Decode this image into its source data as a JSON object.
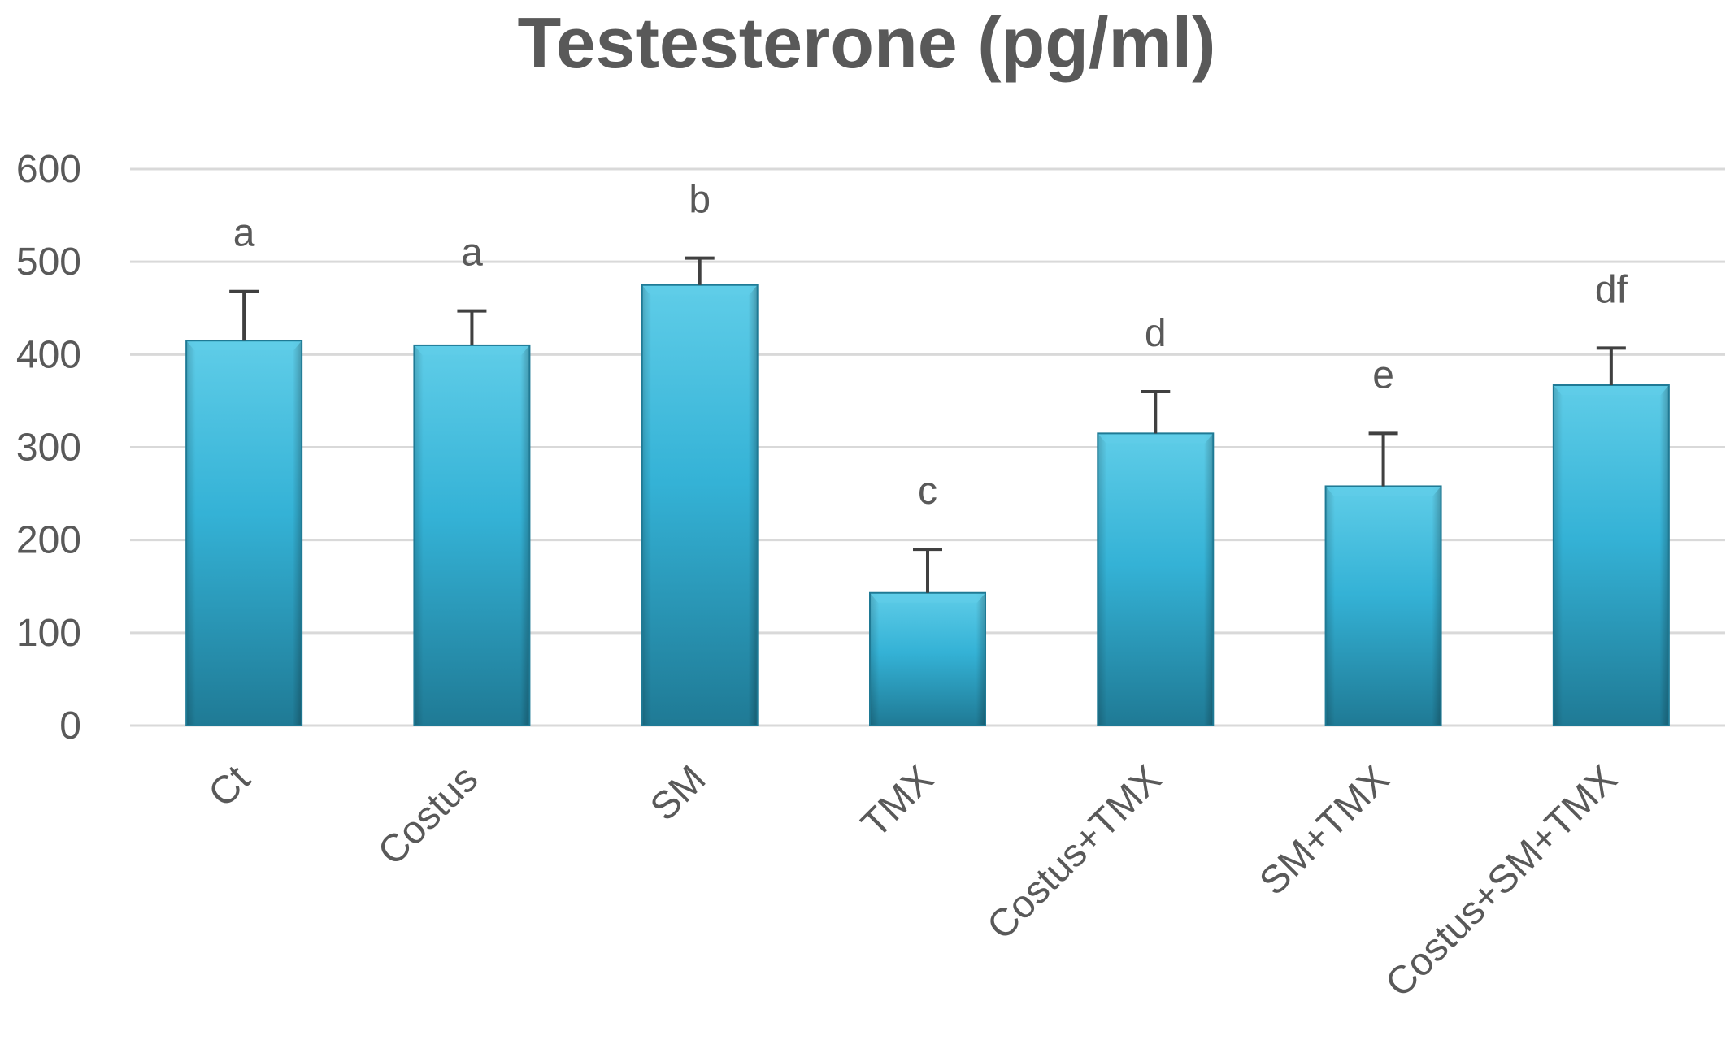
{
  "chart_data": {
    "type": "bar",
    "title": "Testesterone (pg/ml)",
    "xlabel": "",
    "ylabel": "",
    "ylim": [
      0,
      600
    ],
    "yticks": [
      0,
      100,
      200,
      300,
      400,
      500,
      600
    ],
    "yticks_labels": [
      "0",
      "100",
      "200",
      "300",
      "400",
      "500",
      "600"
    ],
    "grid": true,
    "legend": "none",
    "categories": [
      "Ct",
      "Costus",
      "SM",
      "TMX",
      "Costus+TMX",
      "SM+TMX",
      "Costus+SM+TMX"
    ],
    "values": [
      415,
      410,
      475,
      143,
      315,
      258,
      367
    ],
    "errors": [
      53,
      37,
      29,
      47,
      45,
      57,
      40
    ],
    "significance_labels": [
      "a",
      "a",
      "b",
      "c",
      "d",
      "e",
      "df"
    ],
    "colors": {
      "bar": "#34b2d6",
      "bar_dark": "#1f7a95",
      "bar_light": "#5fcde8",
      "grid": "#d9d9d9",
      "text": "#595959",
      "error_bar": "#404040"
    }
  }
}
